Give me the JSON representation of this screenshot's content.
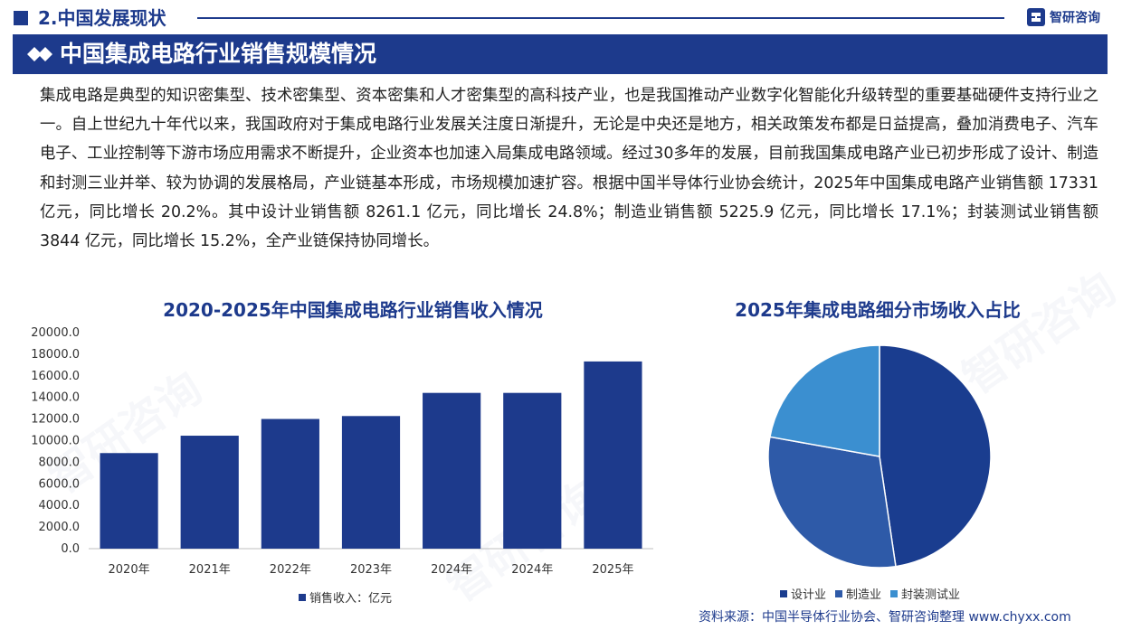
{
  "header": {
    "section_title": "2.中国发展现状",
    "logo_text": "智研咨询"
  },
  "banner": {
    "title": "中国集成电路行业销售规模情况"
  },
  "body_text": "集成电路是典型的知识密集型、技术密集型、资本密集和人才密集型的高科技产业，也是我国推动产业数字化智能化升级转型的重要基础硬件支持行业之一。自上世纪九十年代以来，我国政府对于集成电路行业发展关注度日渐提升，无论是中央还是地方，相关政策发布都是日益提高，叠加消费电子、汽车电子、工业控制等下游市场应用需求不断提升，企业资本也加速入局集成电路领域。经过30多年的发展，目前我国集成电路产业已初步形成了设计、制造和封测三业并举、较为协调的发展格局，产业链基本形成，市场规模加速扩容。根据中国半导体行业协会统计，2025年中国集成电路产业销售额 17331 亿元，同比增长 20.2%。其中设计业销售额 8261.1 亿元，同比增长 24.8%；制造业销售额 5225.9 亿元，同比增长 17.1%；封装测试业销售额 3844 亿元，同比增长 15.2%，全产业链保持协同增长。",
  "source": "资料来源：中国半导体行业协会、智研咨询整理   www.chyxx.com",
  "watermark": "智研咨询",
  "colors": {
    "primary": "#1d3a8c",
    "bar": "#1d3a8c",
    "pie": [
      "#1a3d8f",
      "#2e5aa8",
      "#3b8fd0"
    ]
  },
  "chart_data": [
    {
      "type": "bar",
      "title": "2020-2025年中国集成电路行业销售收入情况",
      "categories": [
        "2020年",
        "2021年",
        "2022年",
        "2023年",
        "2024年",
        "2024年",
        "2025年"
      ],
      "series": [
        {
          "name": "销售收入：亿元",
          "values": [
            8848,
            10458,
            12006,
            12277,
            14420,
            14420,
            17331
          ]
        }
      ],
      "ylim": [
        0,
        20000
      ],
      "yticks": [
        "0.0",
        "2000.0",
        "4000.0",
        "6000.0",
        "8000.0",
        "10000.0",
        "12000.0",
        "14000.0",
        "16000.0",
        "18000.0",
        "20000.0"
      ],
      "grid": false,
      "legend": "bottom"
    },
    {
      "type": "pie",
      "title": "2025年集成电路细分市场收入占比",
      "labels": [
        "设计业",
        "制造业",
        "封装测试业"
      ],
      "values": [
        8261.1,
        5225.9,
        3844
      ],
      "legend": "bottom"
    }
  ]
}
